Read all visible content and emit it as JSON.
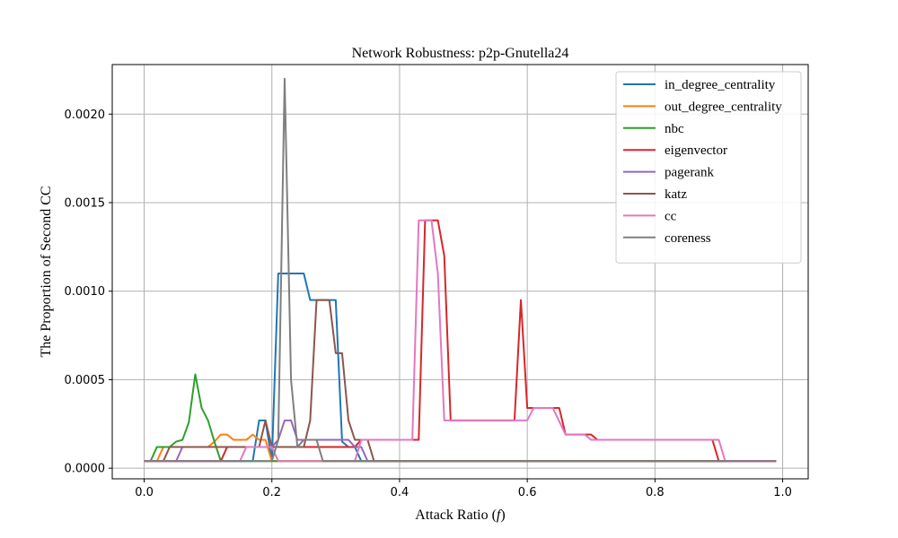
{
  "chart_data": {
    "type": "line",
    "title": "Network Robustness: p2p-Gnutella24",
    "xlabel": "Attack Ratio (",
    "xlabel_symbol": "f",
    "xlabel_end": ")",
    "ylabel": "The Proportion of Second CC",
    "xlim": [
      -0.05,
      1.04
    ],
    "ylim": [
      -6e-05,
      0.00228
    ],
    "xticks": [
      0.0,
      0.2,
      0.4,
      0.6,
      0.8,
      1.0
    ],
    "xtick_labels": [
      "0.0",
      "0.2",
      "0.4",
      "0.6",
      "0.8",
      "1.0"
    ],
    "yticks": [
      0.0,
      0.0005,
      0.001,
      0.0015,
      0.002
    ],
    "ytick_labels": [
      "0.0000",
      "0.0005",
      "0.0010",
      "0.0015",
      "0.0020"
    ],
    "grid": true,
    "legend_position": "top-right",
    "series": [
      {
        "name": "in_degree_centrality",
        "color": "#1f77b4",
        "points": [
          [
            0.0,
            4e-05
          ],
          [
            0.17,
            4e-05
          ],
          [
            0.18,
            0.00027
          ],
          [
            0.19,
            0.00027
          ],
          [
            0.2,
            4e-05
          ],
          [
            0.21,
            0.0011
          ],
          [
            0.25,
            0.0011
          ],
          [
            0.26,
            0.00095
          ],
          [
            0.3,
            0.00095
          ],
          [
            0.31,
            0.00015
          ],
          [
            0.32,
            0.00012
          ],
          [
            0.33,
            0.00012
          ],
          [
            0.34,
            4e-05
          ],
          [
            0.99,
            4e-05
          ]
        ]
      },
      {
        "name": "out_degree_centrality",
        "color": "#ff7f0e",
        "points": [
          [
            0.0,
            4e-05
          ],
          [
            0.02,
            4e-05
          ],
          [
            0.03,
            0.00012
          ],
          [
            0.1,
            0.00012
          ],
          [
            0.11,
            0.00015
          ],
          [
            0.12,
            0.00019
          ],
          [
            0.13,
            0.00019
          ],
          [
            0.14,
            0.00016
          ],
          [
            0.16,
            0.00016
          ],
          [
            0.17,
            0.00019
          ],
          [
            0.18,
            0.00016
          ],
          [
            0.19,
            0.00016
          ],
          [
            0.2,
            4e-05
          ],
          [
            0.99,
            4e-05
          ]
        ]
      },
      {
        "name": "nbc",
        "color": "#2ca02c",
        "points": [
          [
            0.0,
            4e-05
          ],
          [
            0.01,
            4e-05
          ],
          [
            0.02,
            0.00012
          ],
          [
            0.04,
            0.00012
          ],
          [
            0.05,
            0.00015
          ],
          [
            0.06,
            0.00016
          ],
          [
            0.07,
            0.00026
          ],
          [
            0.08,
            0.00053
          ],
          [
            0.09,
            0.00034
          ],
          [
            0.1,
            0.00027
          ],
          [
            0.11,
            0.00015
          ],
          [
            0.12,
            4e-05
          ],
          [
            0.99,
            4e-05
          ]
        ]
      },
      {
        "name": "eigenvector",
        "color": "#d62728",
        "points": [
          [
            0.0,
            4e-05
          ],
          [
            0.12,
            4e-05
          ],
          [
            0.13,
            0.00012
          ],
          [
            0.33,
            0.00012
          ],
          [
            0.34,
            0.00016
          ],
          [
            0.43,
            0.00016
          ],
          [
            0.44,
            0.0014
          ],
          [
            0.46,
            0.0014
          ],
          [
            0.47,
            0.0012
          ],
          [
            0.48,
            0.00027
          ],
          [
            0.58,
            0.00027
          ],
          [
            0.59,
            0.00095
          ],
          [
            0.6,
            0.00034
          ],
          [
            0.65,
            0.00034
          ],
          [
            0.66,
            0.00019
          ],
          [
            0.7,
            0.00019
          ],
          [
            0.71,
            0.00016
          ],
          [
            0.89,
            0.00016
          ],
          [
            0.9,
            4e-05
          ],
          [
            0.99,
            4e-05
          ]
        ]
      },
      {
        "name": "pagerank",
        "color": "#9467bd",
        "points": [
          [
            0.0,
            4e-05
          ],
          [
            0.05,
            4e-05
          ],
          [
            0.06,
            0.00012
          ],
          [
            0.2,
            0.00012
          ],
          [
            0.21,
            0.00016
          ],
          [
            0.22,
            0.00027
          ],
          [
            0.23,
            0.00027
          ],
          [
            0.24,
            0.00016
          ],
          [
            0.32,
            0.00016
          ],
          [
            0.33,
            0.00012
          ],
          [
            0.34,
            0.00012
          ],
          [
            0.35,
            4e-05
          ],
          [
            0.99,
            4e-05
          ]
        ]
      },
      {
        "name": "katz",
        "color": "#8c564b",
        "points": [
          [
            0.0,
            4e-05
          ],
          [
            0.03,
            4e-05
          ],
          [
            0.04,
            0.00012
          ],
          [
            0.18,
            0.00012
          ],
          [
            0.19,
            0.00027
          ],
          [
            0.2,
            0.00012
          ],
          [
            0.25,
            0.00012
          ],
          [
            0.26,
            0.00027
          ],
          [
            0.27,
            0.00095
          ],
          [
            0.29,
            0.00095
          ],
          [
            0.3,
            0.00065
          ],
          [
            0.31,
            0.00065
          ],
          [
            0.32,
            0.00027
          ],
          [
            0.33,
            0.00016
          ],
          [
            0.35,
            0.00016
          ],
          [
            0.36,
            4e-05
          ],
          [
            0.99,
            4e-05
          ]
        ]
      },
      {
        "name": "cc",
        "color": "#e377c2",
        "points": [
          [
            0.0,
            4e-05
          ],
          [
            0.15,
            4e-05
          ],
          [
            0.16,
            0.00012
          ],
          [
            0.2,
            0.00012
          ],
          [
            0.21,
            4e-05
          ],
          [
            0.33,
            4e-05
          ],
          [
            0.34,
            0.00016
          ],
          [
            0.42,
            0.00016
          ],
          [
            0.43,
            0.0014
          ],
          [
            0.45,
            0.0014
          ],
          [
            0.46,
            0.0011
          ],
          [
            0.47,
            0.00027
          ],
          [
            0.6,
            0.00027
          ],
          [
            0.61,
            0.00034
          ],
          [
            0.64,
            0.00034
          ],
          [
            0.66,
            0.00019
          ],
          [
            0.69,
            0.00019
          ],
          [
            0.7,
            0.00016
          ],
          [
            0.9,
            0.00016
          ],
          [
            0.91,
            4e-05
          ],
          [
            0.99,
            4e-05
          ]
        ]
      },
      {
        "name": "coreness",
        "color": "#7f7f7f",
        "points": [
          [
            0.0,
            4e-05
          ],
          [
            0.2,
            4e-05
          ],
          [
            0.21,
            0.00016
          ],
          [
            0.22,
            0.0022
          ],
          [
            0.23,
            0.0005
          ],
          [
            0.24,
            0.00012
          ],
          [
            0.25,
            0.00016
          ],
          [
            0.27,
            0.00016
          ],
          [
            0.28,
            4e-05
          ],
          [
            0.99,
            4e-05
          ]
        ]
      }
    ]
  }
}
